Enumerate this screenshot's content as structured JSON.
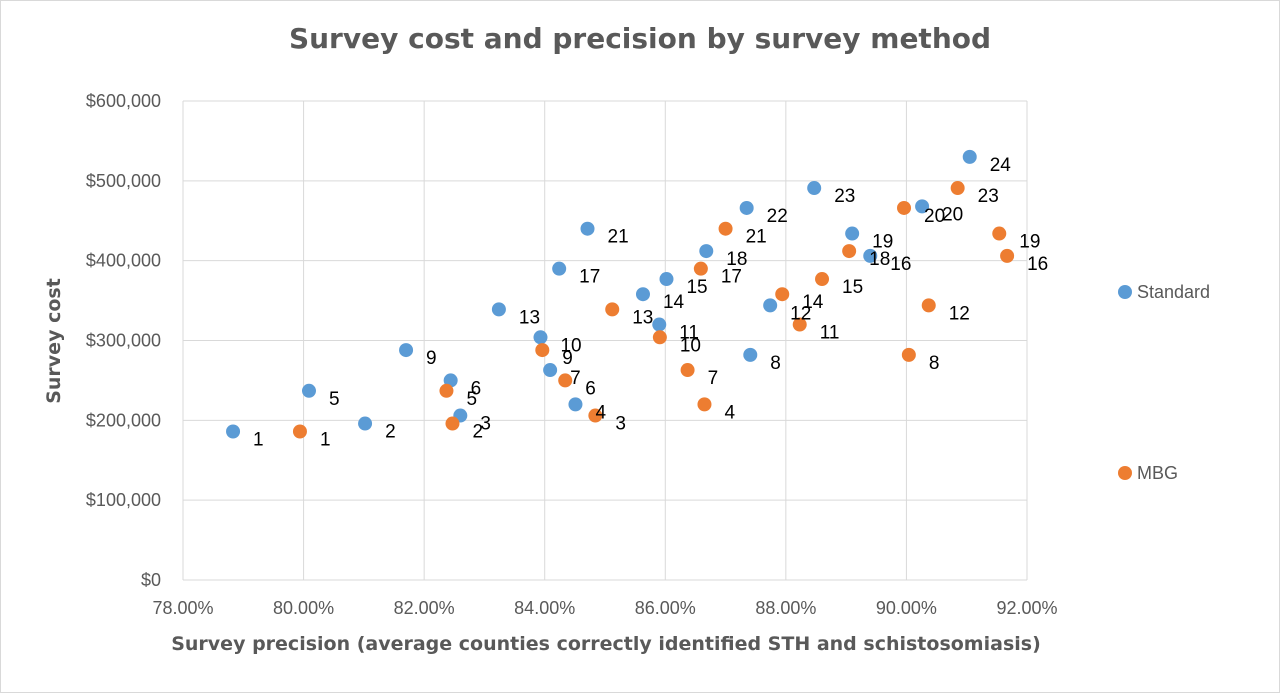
{
  "chart_data": {
    "type": "scatter",
    "title": "Survey cost and precision by survey method",
    "xlabel": "Survey precision (average counties correctly identified STH and schistosomiasis)",
    "ylabel": "Survey cost",
    "xlim": [
      0.78,
      0.92
    ],
    "ylim": [
      0,
      600000
    ],
    "x_ticks": [
      0.78,
      0.8,
      0.82,
      0.84,
      0.86,
      0.88,
      0.9,
      0.92
    ],
    "x_tick_labels": [
      "78.00%",
      "80.00%",
      "82.00%",
      "84.00%",
      "86.00%",
      "88.00%",
      "90.00%",
      "92.00%"
    ],
    "y_ticks": [
      0,
      100000,
      200000,
      300000,
      400000,
      500000,
      600000
    ],
    "y_tick_labels": [
      "$0",
      "$100,000",
      "$200,000",
      "$300,000",
      "$400,000",
      "$500,000",
      "$600,000"
    ],
    "grid": true,
    "legend_position": "right",
    "series": [
      {
        "name": "Standard",
        "color": "#5b9bd5",
        "points": [
          {
            "label": "1",
            "x": 0.7883,
            "y": 186000
          },
          {
            "label": "2",
            "x": 0.8102,
            "y": 196000
          },
          {
            "label": "3",
            "x": 0.826,
            "y": 206000
          },
          {
            "label": "4",
            "x": 0.8451,
            "y": 220000
          },
          {
            "label": "5",
            "x": 0.8009,
            "y": 237000
          },
          {
            "label": "6",
            "x": 0.8244,
            "y": 250000
          },
          {
            "label": "7",
            "x": 0.8409,
            "y": 263000
          },
          {
            "label": "8",
            "x": 0.8741,
            "y": 282000
          },
          {
            "label": "9",
            "x": 0.817,
            "y": 288000
          },
          {
            "label": "10",
            "x": 0.8393,
            "y": 304000
          },
          {
            "label": "11",
            "x": 0.859,
            "y": 320000
          },
          {
            "label": "12",
            "x": 0.8774,
            "y": 344000
          },
          {
            "label": "13",
            "x": 0.8324,
            "y": 339000
          },
          {
            "label": "14",
            "x": 0.8563,
            "y": 358000
          },
          {
            "label": "15",
            "x": 0.8602,
            "y": 377000
          },
          {
            "label": "16",
            "x": 0.894,
            "y": 406000
          },
          {
            "label": "17",
            "x": 0.8424,
            "y": 390000
          },
          {
            "label": "18",
            "x": 0.8668,
            "y": 412000
          },
          {
            "label": "19",
            "x": 0.891,
            "y": 434000
          },
          {
            "label": "20",
            "x": 0.9026,
            "y": 468000
          },
          {
            "label": "21",
            "x": 0.8471,
            "y": 440000
          },
          {
            "label": "22",
            "x": 0.8735,
            "y": 466000
          },
          {
            "label": "23",
            "x": 0.8847,
            "y": 491000
          },
          {
            "label": "24",
            "x": 0.9105,
            "y": 530000
          }
        ]
      },
      {
        "name": "MBG",
        "color": "#ed7d31",
        "points": [
          {
            "label": "1",
            "x": 0.7994,
            "y": 186000
          },
          {
            "label": "2",
            "x": 0.8247,
            "y": 196000
          },
          {
            "label": "3",
            "x": 0.8484,
            "y": 206000
          },
          {
            "label": "4",
            "x": 0.8665,
            "y": 220000
          },
          {
            "label": "5",
            "x": 0.8237,
            "y": 237000
          },
          {
            "label": "6",
            "x": 0.8434,
            "y": 250000
          },
          {
            "label": "7",
            "x": 0.8637,
            "y": 263000
          },
          {
            "label": "8",
            "x": 0.9004,
            "y": 282000
          },
          {
            "label": "9",
            "x": 0.8396,
            "y": 288000
          },
          {
            "label": "10",
            "x": 0.8591,
            "y": 304000
          },
          {
            "label": "11",
            "x": 0.8823,
            "y": 320000
          },
          {
            "label": "12",
            "x": 0.9037,
            "y": 344000
          },
          {
            "label": "13",
            "x": 0.8512,
            "y": 339000
          },
          {
            "label": "14",
            "x": 0.8794,
            "y": 358000
          },
          {
            "label": "15",
            "x": 0.886,
            "y": 377000
          },
          {
            "label": "16",
            "x": 0.9167,
            "y": 406000
          },
          {
            "label": "17",
            "x": 0.8659,
            "y": 390000
          },
          {
            "label": "18",
            "x": 0.8905,
            "y": 412000
          },
          {
            "label": "19",
            "x": 0.9154,
            "y": 434000
          },
          {
            "label": "20",
            "x": 0.8996,
            "y": 466000
          },
          {
            "label": "21",
            "x": 0.87,
            "y": 440000
          },
          {
            "label": "23",
            "x": 0.9085,
            "y": 491000
          }
        ]
      }
    ]
  }
}
